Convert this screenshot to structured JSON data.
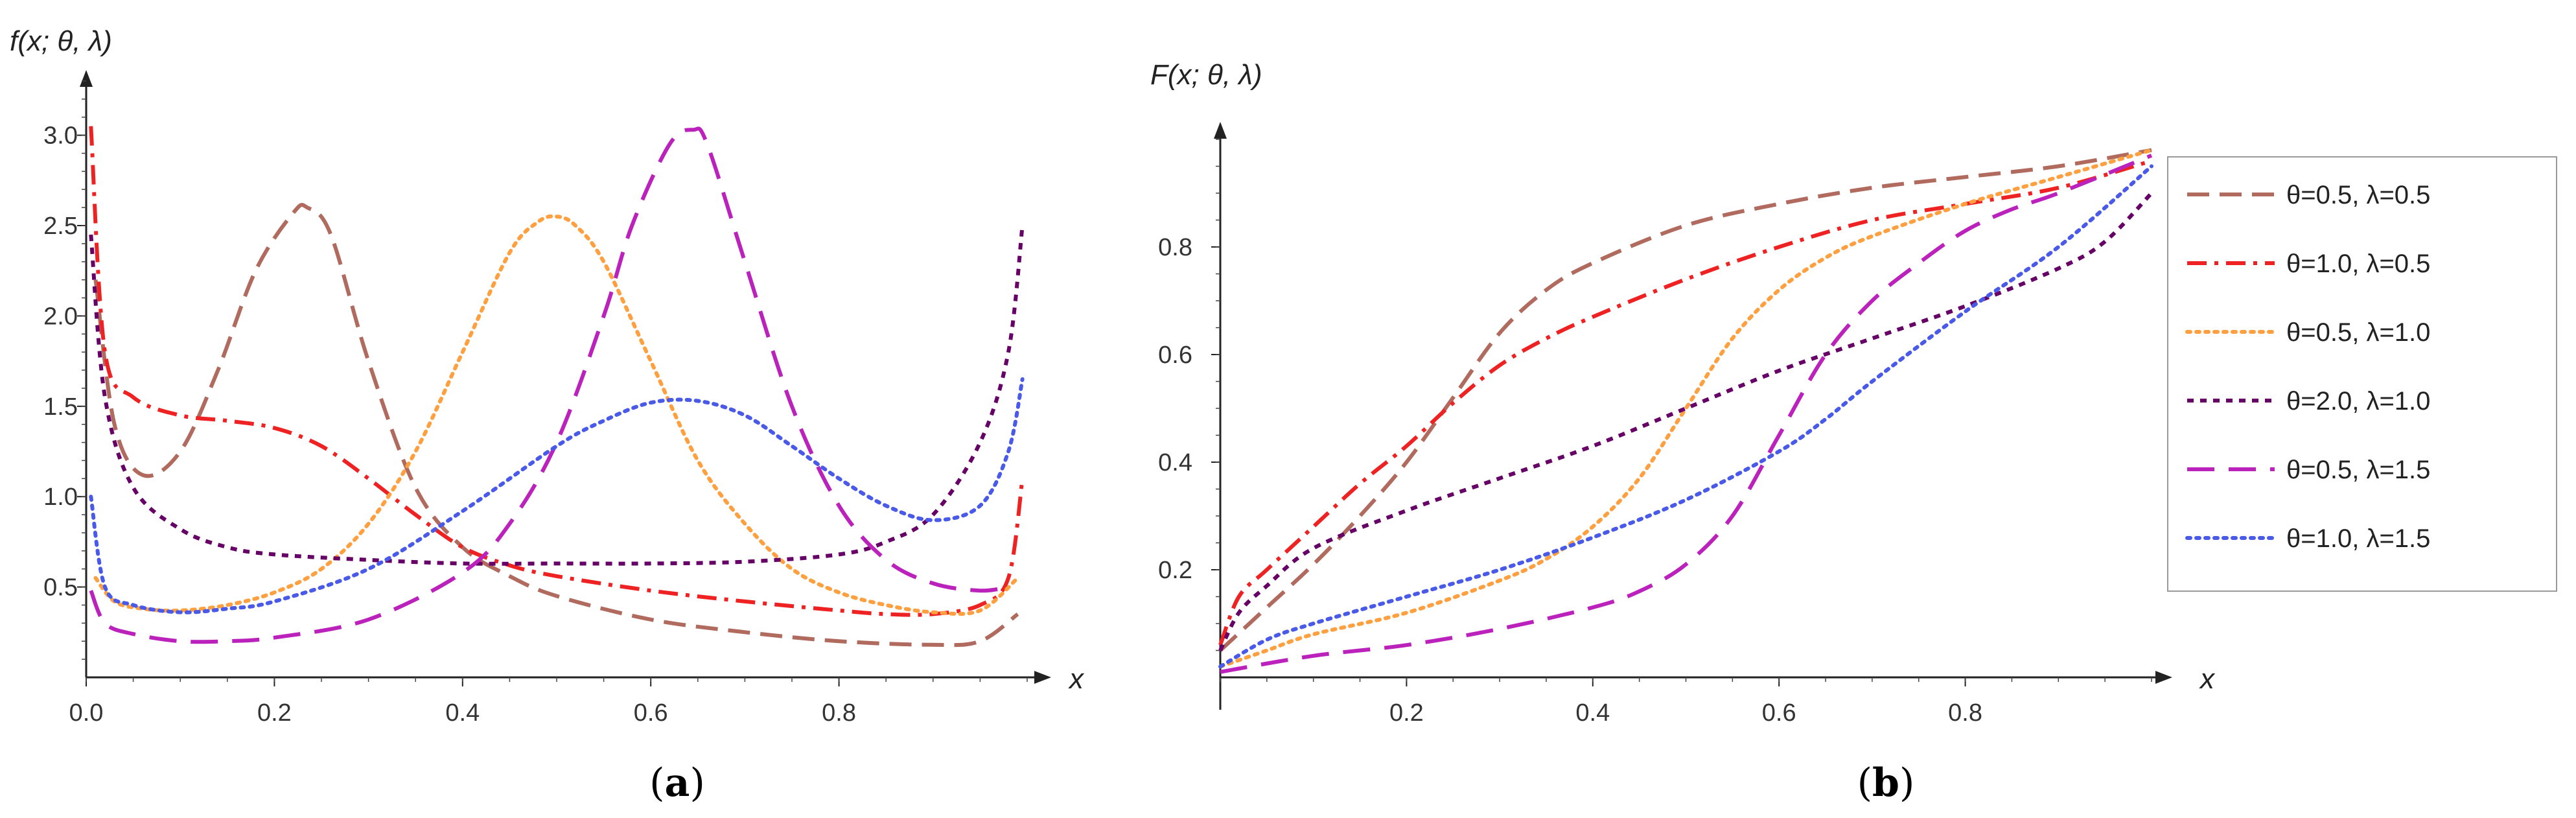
{
  "figure": {
    "panel_a_label_open": "(",
    "panel_a_label_letter": "a",
    "panel_a_label_close": ")",
    "panel_b_label_open": "(",
    "panel_b_label_letter": "b",
    "panel_b_label_close": ")"
  },
  "chart_data": [
    {
      "id": "a",
      "type": "line",
      "ylabel": "f(x; θ, λ)",
      "xlabel": "x",
      "xlim": [
        0,
        1
      ],
      "ylim": [
        0,
        3.3
      ],
      "xticks": [
        "0.0",
        "0.2",
        "0.4",
        "0.6",
        "0.8"
      ],
      "xtick_values": [
        0,
        0.2,
        0.4,
        0.6,
        0.8
      ],
      "yticks": [
        "0.5",
        "1.0",
        "1.5",
        "2.0",
        "2.5",
        "3.0"
      ],
      "ytick_values": [
        0.5,
        1.0,
        1.5,
        2.0,
        2.5,
        3.0
      ],
      "series": [
        {
          "name": "θ=0.5, λ=0.5",
          "color": "#b06a5e",
          "dash": "dashed",
          "x": [
            0.01,
            0.03,
            0.06,
            0.1,
            0.14,
            0.18,
            0.22,
            0.235,
            0.26,
            0.3,
            0.35,
            0.4,
            0.45,
            0.5,
            0.6,
            0.7,
            0.8,
            0.9,
            0.95,
            0.99
          ],
          "y": [
            2.2,
            1.4,
            1.12,
            1.25,
            1.7,
            2.25,
            2.57,
            2.6,
            2.45,
            1.75,
            1.05,
            0.72,
            0.56,
            0.45,
            0.32,
            0.25,
            0.2,
            0.18,
            0.2,
            0.35
          ]
        },
        {
          "name": "θ=1.0, λ=0.5",
          "color": "#ee2222",
          "dash": "dashdot",
          "x": [
            0.005,
            0.02,
            0.05,
            0.1,
            0.15,
            0.2,
            0.25,
            0.3,
            0.35,
            0.4,
            0.45,
            0.5,
            0.6,
            0.7,
            0.8,
            0.85,
            0.9,
            0.95,
            0.98,
            0.995
          ],
          "y": [
            3.05,
            1.8,
            1.55,
            1.45,
            1.42,
            1.38,
            1.28,
            1.1,
            0.9,
            0.72,
            0.62,
            0.56,
            0.48,
            0.42,
            0.37,
            0.35,
            0.35,
            0.4,
            0.55,
            1.1
          ]
        },
        {
          "name": "θ=0.5, λ=1.0",
          "color": "#ffa040",
          "dash": "dotted",
          "x": [
            0.01,
            0.03,
            0.06,
            0.1,
            0.15,
            0.2,
            0.25,
            0.3,
            0.35,
            0.4,
            0.45,
            0.48,
            0.5,
            0.52,
            0.55,
            0.6,
            0.65,
            0.7,
            0.75,
            0.8,
            0.85,
            0.9,
            0.95,
            0.99
          ],
          "y": [
            0.55,
            0.42,
            0.38,
            0.37,
            0.4,
            0.47,
            0.6,
            0.85,
            1.25,
            1.8,
            2.35,
            2.52,
            2.55,
            2.5,
            2.3,
            1.75,
            1.2,
            0.85,
            0.6,
            0.47,
            0.4,
            0.36,
            0.37,
            0.55
          ]
        },
        {
          "name": "θ=2.0, λ=1.0",
          "color": "#660066",
          "dash": "shortdash",
          "x": [
            0.005,
            0.02,
            0.05,
            0.1,
            0.15,
            0.2,
            0.3,
            0.4,
            0.5,
            0.6,
            0.7,
            0.8,
            0.85,
            0.9,
            0.95,
            0.98,
            0.995
          ],
          "y": [
            2.45,
            1.55,
            1.05,
            0.82,
            0.72,
            0.68,
            0.65,
            0.63,
            0.63,
            0.63,
            0.64,
            0.68,
            0.75,
            0.9,
            1.3,
            1.8,
            2.5
          ]
        },
        {
          "name": "θ=0.5, λ=1.5",
          "color": "#bb22bb",
          "dash": "longdash",
          "x": [
            0.005,
            0.02,
            0.05,
            0.1,
            0.15,
            0.2,
            0.3,
            0.4,
            0.45,
            0.5,
            0.55,
            0.58,
            0.62,
            0.645,
            0.66,
            0.7,
            0.75,
            0.8,
            0.85,
            0.9,
            0.95,
            0.98
          ],
          "y": [
            0.48,
            0.3,
            0.24,
            0.2,
            0.2,
            0.22,
            0.32,
            0.58,
            0.85,
            1.3,
            2.0,
            2.5,
            2.95,
            3.03,
            2.95,
            2.3,
            1.5,
            0.95,
            0.65,
            0.52,
            0.48,
            0.5
          ]
        },
        {
          "name": "θ=1.0, λ=1.5",
          "color": "#4a5ae8",
          "dash": "dotted",
          "x": [
            0.005,
            0.02,
            0.05,
            0.1,
            0.15,
            0.2,
            0.3,
            0.4,
            0.5,
            0.55,
            0.6,
            0.65,
            0.7,
            0.75,
            0.8,
            0.85,
            0.9,
            0.95,
            0.98,
            0.995
          ],
          "y": [
            1.0,
            0.5,
            0.4,
            0.36,
            0.38,
            0.42,
            0.6,
            0.92,
            1.28,
            1.42,
            1.52,
            1.53,
            1.45,
            1.28,
            1.1,
            0.95,
            0.87,
            0.95,
            1.25,
            1.65
          ]
        }
      ]
    },
    {
      "id": "b",
      "type": "line",
      "ylabel": "F(x; θ, λ)",
      "xlabel": "x",
      "xlim": [
        0,
        1
      ],
      "ylim": [
        0,
        1.0
      ],
      "xticks": [
        "0.2",
        "0.4",
        "0.6",
        "0.8"
      ],
      "xtick_values": [
        0.2,
        0.4,
        0.6,
        0.8
      ],
      "yticks": [
        "0.2",
        "0.4",
        "0.6",
        "0.8"
      ],
      "ytick_values": [
        0.2,
        0.4,
        0.6,
        0.8
      ],
      "legend_position": "right",
      "series": [
        {
          "name": "θ=0.5, λ=0.5",
          "color": "#b06a5e",
          "dash": "dashed",
          "x": [
            0,
            0.05,
            0.1,
            0.15,
            0.2,
            0.25,
            0.3,
            0.35,
            0.4,
            0.5,
            0.6,
            0.7,
            0.8,
            0.9,
            1.0
          ],
          "y": [
            0.05,
            0.13,
            0.21,
            0.3,
            0.4,
            0.52,
            0.64,
            0.72,
            0.77,
            0.84,
            0.88,
            0.91,
            0.93,
            0.95,
            0.98
          ]
        },
        {
          "name": "θ=1.0, λ=0.5",
          "color": "#ee2222",
          "dash": "dashdot",
          "x": [
            0,
            0.02,
            0.05,
            0.1,
            0.15,
            0.2,
            0.25,
            0.3,
            0.35,
            0.4,
            0.5,
            0.6,
            0.7,
            0.8,
            0.9,
            1.0
          ],
          "y": [
            0.06,
            0.15,
            0.2,
            0.28,
            0.36,
            0.43,
            0.51,
            0.58,
            0.63,
            0.67,
            0.74,
            0.8,
            0.85,
            0.88,
            0.91,
            0.96
          ]
        },
        {
          "name": "θ=0.5, λ=1.0",
          "color": "#ffa040",
          "dash": "dotted",
          "x": [
            0,
            0.05,
            0.1,
            0.2,
            0.3,
            0.35,
            0.4,
            0.45,
            0.5,
            0.55,
            0.6,
            0.65,
            0.7,
            0.8,
            0.9,
            1.0
          ],
          "y": [
            0.02,
            0.05,
            0.08,
            0.12,
            0.18,
            0.22,
            0.28,
            0.37,
            0.5,
            0.63,
            0.72,
            0.78,
            0.82,
            0.88,
            0.93,
            0.98
          ]
        },
        {
          "name": "θ=2.0, λ=1.0",
          "color": "#660066",
          "dash": "shortdash",
          "x": [
            0,
            0.02,
            0.05,
            0.1,
            0.2,
            0.3,
            0.4,
            0.5,
            0.6,
            0.7,
            0.8,
            0.9,
            0.95,
            1.0
          ],
          "y": [
            0.05,
            0.12,
            0.17,
            0.24,
            0.31,
            0.37,
            0.43,
            0.5,
            0.57,
            0.63,
            0.69,
            0.76,
            0.81,
            0.9
          ]
        },
        {
          "name": "θ=0.5, λ=1.5",
          "color": "#bb22bb",
          "dash": "longdash",
          "x": [
            0,
            0.1,
            0.2,
            0.3,
            0.4,
            0.45,
            0.5,
            0.55,
            0.6,
            0.65,
            0.7,
            0.75,
            0.8,
            0.85,
            0.9,
            1.0
          ],
          "y": [
            0.01,
            0.04,
            0.06,
            0.09,
            0.13,
            0.16,
            0.21,
            0.3,
            0.45,
            0.6,
            0.7,
            0.77,
            0.83,
            0.87,
            0.9,
            0.97
          ]
        },
        {
          "name": "θ=1.0, λ=1.5",
          "color": "#4a5ae8",
          "dash": "dotted",
          "x": [
            0,
            0.05,
            0.1,
            0.2,
            0.3,
            0.4,
            0.5,
            0.6,
            0.65,
            0.7,
            0.8,
            0.9,
            1.0
          ],
          "y": [
            0.02,
            0.07,
            0.1,
            0.15,
            0.2,
            0.26,
            0.33,
            0.42,
            0.48,
            0.55,
            0.68,
            0.8,
            0.95
          ]
        }
      ]
    }
  ]
}
